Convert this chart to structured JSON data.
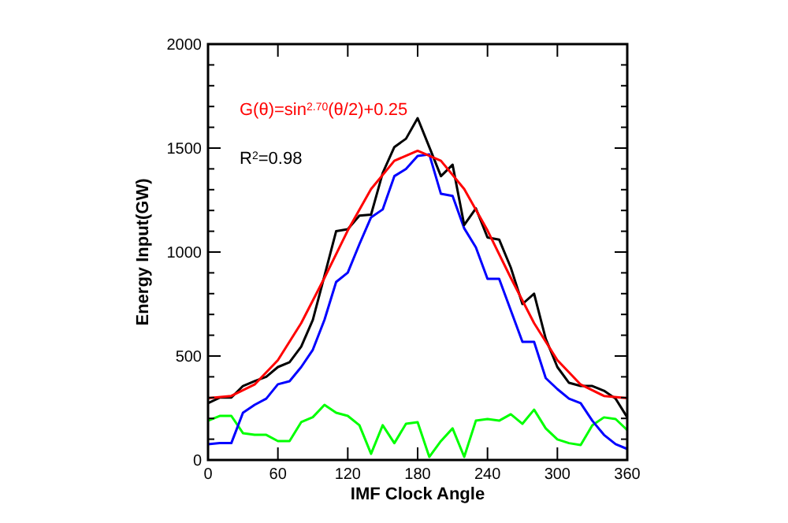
{
  "chart_data": {
    "type": "line",
    "xlabel": "IMF Clock Angle",
    "ylabel": "Energy Input(GW)",
    "annotations": [
      "G(θ)=sin$^{2.70}$(θ/2)+0.25",
      "R$^{2}$=0.98"
    ],
    "xlim": [
      0,
      360
    ],
    "xticks": [
      0,
      60,
      120,
      180,
      240,
      300,
      360
    ],
    "ylim": [
      0,
      2000
    ],
    "yticks": [
      0,
      {
        "value": 100,
        "label": null
      },
      {
        "value": 200,
        "label": null
      },
      {
        "value": 300,
        "label": null
      },
      {
        "value": 400,
        "label": null
      },
      500,
      {
        "value": 600,
        "label": null
      },
      {
        "value": 700,
        "label": null
      },
      {
        "value": 800,
        "label": null
      },
      {
        "value": 900,
        "label": null
      },
      1000,
      {
        "value": 1100,
        "label": null
      },
      {
        "value": 1200,
        "label": null
      },
      {
        "value": 1300,
        "label": null
      },
      {
        "value": 1400,
        "label": null
      },
      1500,
      {
        "value": 1600,
        "label": null
      },
      {
        "value": 1700,
        "label": null
      },
      {
        "value": 1800,
        "label": null
      },
      {
        "value": 1900,
        "label": null
      },
      2000
    ],
    "grid": false,
    "series": [
      {
        "color": "#00ff00",
        "x": [
          0,
          10,
          20,
          30,
          40,
          50,
          60,
          70,
          80,
          90,
          100,
          110,
          120,
          130,
          140,
          150,
          160,
          170,
          180,
          190,
          200,
          210,
          220,
          230,
          240,
          250,
          260,
          270,
          280,
          290,
          300,
          310,
          320,
          330,
          340,
          350,
          360
        ],
        "values": [
          189,
          212,
          212,
          129,
          121,
          121,
          91,
          91,
          182,
          206,
          265,
          227,
          212,
          167,
          30,
          167,
          81,
          174,
          182,
          15,
          91,
          152,
          15,
          189,
          197,
          189,
          220,
          174,
          242,
          152,
          99,
          81,
          72,
          167,
          205,
          197,
          144
        ]
      },
      {
        "color": "#0000ff",
        "x": [
          0,
          10,
          20,
          30,
          40,
          50,
          60,
          70,
          80,
          90,
          100,
          110,
          120,
          130,
          140,
          150,
          160,
          170,
          180,
          190,
          200,
          210,
          220,
          230,
          240,
          250,
          260,
          270,
          280,
          290,
          300,
          310,
          320,
          330,
          340,
          350,
          360
        ],
        "values": [
          76,
          81,
          81,
          227,
          265,
          295,
          364,
          379,
          447,
          530,
          674,
          856,
          901,
          1038,
          1167,
          1205,
          1365,
          1400,
          1462,
          1470,
          1280,
          1270,
          1114,
          1023,
          871,
          871,
          720,
          568,
          568,
          394,
          341,
          295,
          273,
          189,
          121,
          76,
          53
        ]
      },
      {
        "color": "#000000",
        "x": [
          0,
          10,
          20,
          30,
          40,
          50,
          60,
          70,
          80,
          90,
          100,
          110,
          120,
          130,
          140,
          150,
          160,
          170,
          180,
          190,
          200,
          210,
          220,
          230,
          240,
          250,
          260,
          270,
          280,
          290,
          300,
          310,
          320,
          330,
          340,
          350,
          360
        ],
        "values": [
          273,
          300,
          300,
          356,
          379,
          400,
          447,
          470,
          545,
          674,
          886,
          1100,
          1110,
          1175,
          1180,
          1380,
          1505,
          1545,
          1644,
          1505,
          1365,
          1420,
          1130,
          1210,
          1070,
          1060,
          925,
          750,
          800,
          583,
          447,
          371,
          356,
          356,
          333,
          295,
          205
        ]
      },
      {
        "color": "#ff0000",
        "x": [
          0,
          20,
          40,
          60,
          80,
          100,
          120,
          140,
          160,
          180,
          200,
          220,
          240,
          260,
          280,
          300,
          320,
          340,
          360
        ],
        "values": [
          297,
          308,
          363,
          480,
          658,
          876,
          1104,
          1303,
          1439,
          1487,
          1439,
          1303,
          1104,
          876,
          658,
          480,
          363,
          308,
          297
        ]
      }
    ]
  }
}
